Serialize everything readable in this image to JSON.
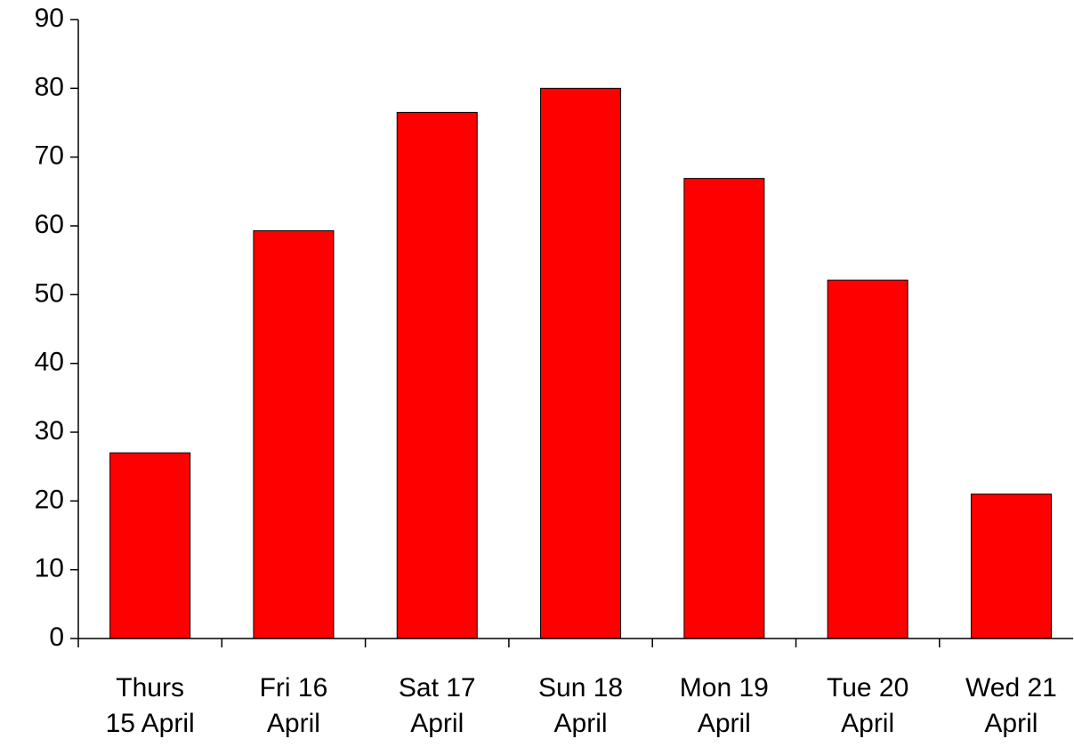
{
  "chart_data": {
    "type": "bar",
    "categories": [
      "Thurs\n15 April",
      "Fri 16\nApril",
      "Sat 17\nApril",
      "Sun 18\nApril",
      "Mon 19\nApril",
      "Tue 20\nApril",
      "Wed 21\nApril"
    ],
    "values": [
      27,
      59.3,
      76.5,
      80,
      66.9,
      52.1,
      21
    ],
    "color": "#ff0000",
    "ylim": [
      0,
      90
    ],
    "yticks": [
      0,
      10,
      20,
      30,
      40,
      50,
      60,
      70,
      80,
      90
    ],
    "grid": false
  }
}
